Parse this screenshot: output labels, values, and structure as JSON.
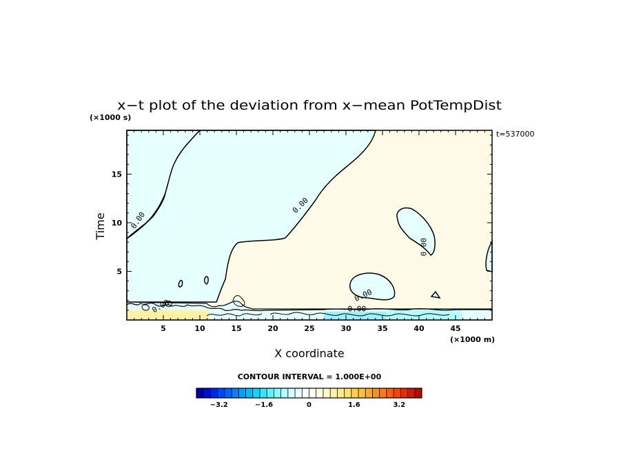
{
  "chart_data": {
    "type": "heatmap",
    "title": "x−t plot of the deviation from x−mean PotTempDist",
    "xlabel": "X coordinate",
    "ylabel": "Time",
    "x_unit": "(×1000 m)",
    "y_unit": "(×1000 s)",
    "time_stamp": "t=537000",
    "xlim": [
      0,
      50
    ],
    "ylim": [
      0,
      19.5
    ],
    "x_ticks": [
      5,
      10,
      15,
      20,
      25,
      30,
      35,
      40,
      45
    ],
    "y_ticks": [
      5,
      10,
      15
    ],
    "contour_level": 0.0,
    "contour_labels": [
      {
        "text": "0.00",
        "x": 1.8,
        "y": 10.1,
        "angle": -55
      },
      {
        "text": "0.00",
        "x": 24.0,
        "y": 11.6,
        "angle": -45
      },
      {
        "text": "0.00",
        "x": 41.0,
        "y": 7.5,
        "angle": -90
      },
      {
        "text": "0.00",
        "x": 32.5,
        "y": 2.3,
        "angle": -25
      },
      {
        "text": "0.00",
        "x": 31.5,
        "y": 0.9,
        "angle": 0
      },
      {
        "text": "0.00",
        "x": 4.8,
        "y": 1.2,
        "angle": -30
      }
    ],
    "regions": [
      {
        "name": "negative",
        "approx_value": -0.1,
        "color": "#e6ffff"
      },
      {
        "name": "positive",
        "approx_value": 0.1,
        "color": "#fffbe8"
      },
      {
        "name": "positive-band",
        "approx_value": 0.6,
        "color": "#fff2a8"
      },
      {
        "name": "negative-band",
        "approx_value": -0.6,
        "color": "#9ef0ff"
      }
    ],
    "colorbar": {
      "title": "CONTOUR INTERVAL = 1.000E+00",
      "min": -4.0,
      "max": 4.0,
      "tick_labels": [
        "−3.2",
        "−1.6",
        "0",
        "1.6",
        "3.2"
      ],
      "tick_values": [
        -3.2,
        -1.6,
        0,
        1.6,
        3.2
      ],
      "colors": [
        "#0000a0",
        "#0010c8",
        "#0028e6",
        "#0046ff",
        "#0064ff",
        "#0082ff",
        "#00a0ff",
        "#00bcff",
        "#14d4ff",
        "#3ce4ff",
        "#64f0ff",
        "#8cf8ff",
        "#b4ffff",
        "#d4ffff",
        "#e6ffff",
        "#f4ffff",
        "#fffff4",
        "#fffbe6",
        "#fff8cc",
        "#fff2a8",
        "#ffec8c",
        "#ffe070",
        "#ffd050",
        "#ffbf3c",
        "#ffa82c",
        "#ff9020",
        "#ff7818",
        "#ff6010",
        "#f0460a",
        "#dc3008",
        "#c81e06",
        "#b40a04"
      ]
    }
  }
}
